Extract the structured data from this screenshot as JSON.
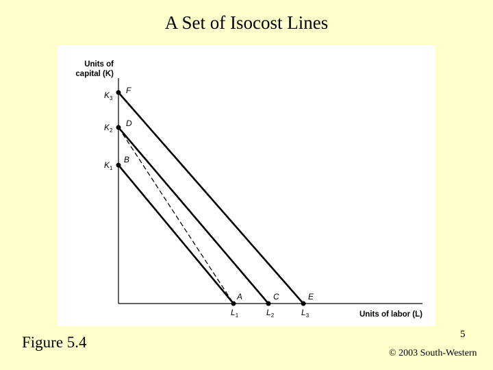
{
  "slide": {
    "title": "A Set of Isocost Lines",
    "figure_label": "Figure 5.4",
    "page_number": "5",
    "copyright": "© 2003 South-Western"
  },
  "diagram": {
    "y_axis_label_line1": "Units of",
    "y_axis_label_line2": "capital (K)",
    "x_axis_label": "Units of labor (L)",
    "y_ticks": [
      {
        "main": "K",
        "sub": "3"
      },
      {
        "main": "K",
        "sub": "2"
      },
      {
        "main": "K",
        "sub": "1"
      }
    ],
    "x_ticks": [
      {
        "main": "L",
        "sub": "1"
      },
      {
        "main": "L",
        "sub": "2"
      },
      {
        "main": "L",
        "sub": "3"
      }
    ],
    "points": {
      "F": "F",
      "D": "D",
      "B": "B",
      "A": "A",
      "C": "C",
      "E": "E"
    }
  }
}
